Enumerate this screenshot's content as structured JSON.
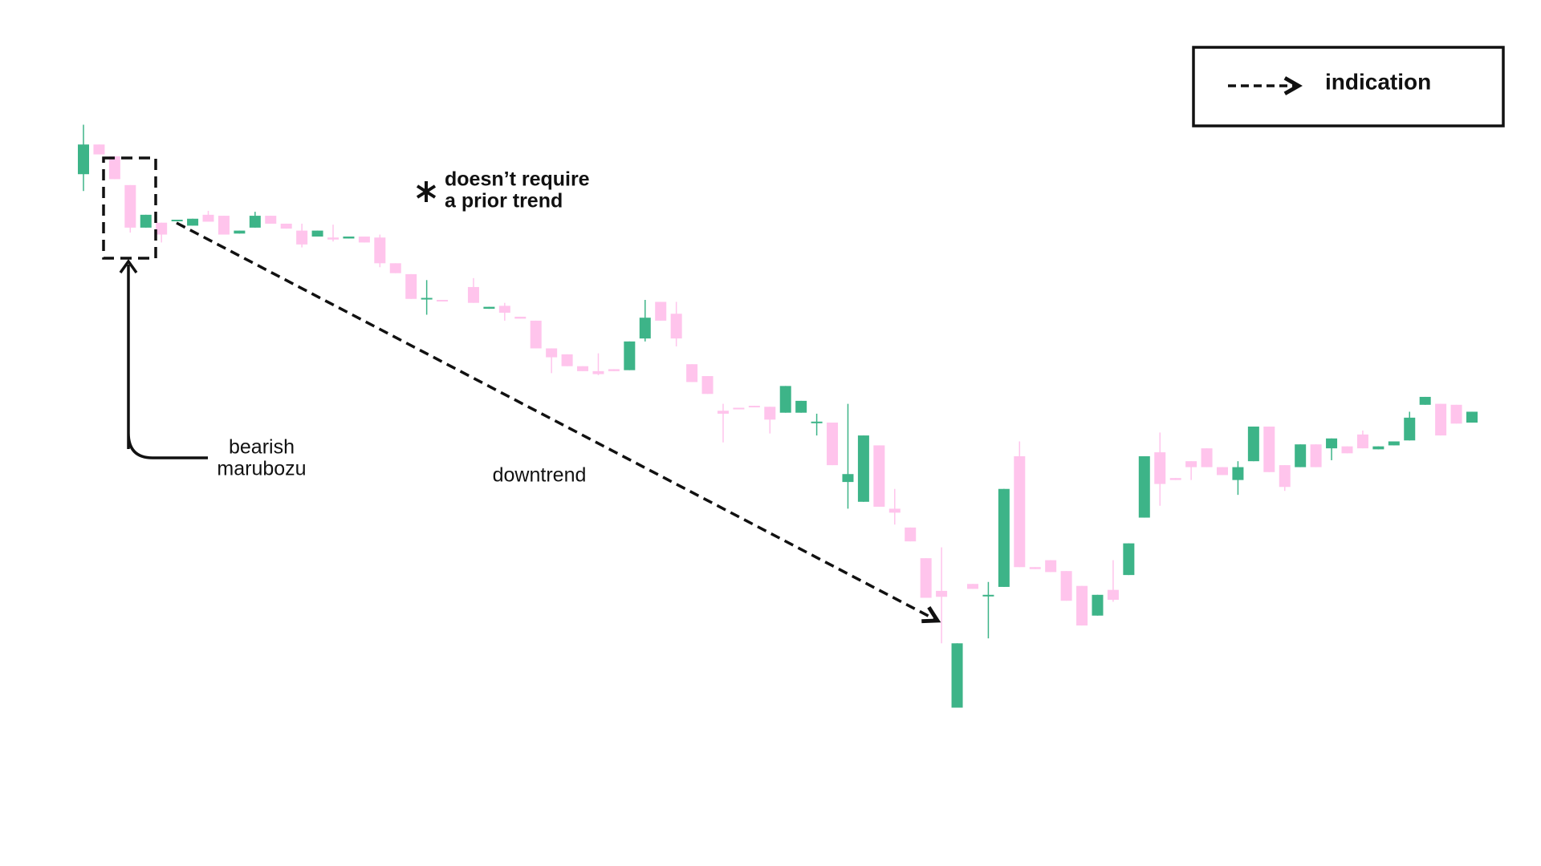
{
  "chart_data": {
    "type": "candlestick",
    "open": [
      699,
      729,
      717,
      688,
      645,
      650,
      652,
      647,
      658,
      657,
      639,
      645,
      657,
      649,
      642,
      636,
      635,
      634,
      636,
      635,
      609,
      598,
      573,
      572,
      null,
      585,
      563,
      566,
      555,
      551,
      523,
      517,
      505,
      500,
      502,
      501,
      533,
      570,
      558,
      507,
      495,
      460,
      463,
      465,
      464,
      458,
      458,
      448,
      448,
      388,
      368,
      425,
      361,
      342,
      311,
      278,
      160,
      285,
      273,
      282,
      414,
      302,
      309,
      298,
      283,
      253,
      279,
      294,
      352,
      418,
      392,
      409,
      422,
      403,
      390,
      409,
      444,
      405,
      403,
      426,
      422,
      424,
      436,
      421,
      425,
      430,
      466,
      467,
      466,
      448
    ],
    "high": [
      749,
      729,
      717,
      688,
      658,
      650,
      653,
      654,
      662,
      657,
      642,
      661,
      657,
      649,
      649,
      642,
      648,
      636,
      636,
      638,
      609,
      598,
      592,
      572,
      null,
      594,
      565,
      569,
      555,
      551,
      523,
      517,
      505,
      518,
      502,
      530,
      572,
      570,
      570,
      507,
      495,
      467,
      463,
      465,
      464,
      485,
      470,
      457,
      448,
      467,
      435,
      425,
      381,
      342,
      311,
      322,
      225,
      285,
      287,
      381,
      429,
      302,
      309,
      298,
      283,
      274,
      309,
      326,
      414,
      438,
      392,
      409,
      422,
      403,
      409,
      444,
      444,
      405,
      426,
      426,
      432,
      424,
      440,
      424,
      429,
      459,
      474,
      467,
      466,
      459
    ],
    "low": [
      682,
      719,
      694,
      640,
      645,
      630,
      652,
      647,
      651,
      638,
      639,
      645,
      649,
      644,
      625,
      636,
      631,
      634,
      630,
      605,
      599,
      573,
      557,
      571,
      null,
      569,
      563,
      551,
      553,
      523,
      498,
      505,
      500,
      496,
      500,
      501,
      530,
      551,
      525,
      489,
      477,
      428,
      462,
      464,
      437,
      458,
      458,
      435,
      405,
      361,
      368,
      363,
      345,
      328,
      271,
      225,
      160,
      280,
      230,
      282,
      302,
      300,
      297,
      268,
      243,
      253,
      267,
      294,
      352,
      364,
      390,
      390,
      403,
      395,
      375,
      409,
      398,
      379,
      403,
      403,
      410,
      417,
      422,
      421,
      425,
      430,
      466,
      435,
      447,
      448
    ],
    "close": [
      729,
      719,
      694,
      645,
      658,
      638,
      653,
      654,
      651,
      638,
      642,
      657,
      649,
      644,
      628,
      642,
      633,
      636,
      630,
      609,
      599,
      573,
      574,
      571,
      null,
      569,
      565,
      559,
      553,
      523,
      514,
      505,
      500,
      497,
      500,
      530,
      554,
      551,
      533,
      489,
      477,
      457,
      462,
      464,
      451,
      485,
      470,
      449,
      405,
      396,
      435,
      363,
      357,
      328,
      271,
      272,
      225,
      280,
      274,
      381,
      302,
      300,
      297,
      268,
      243,
      274,
      269,
      326,
      414,
      386,
      390,
      403,
      403,
      395,
      403,
      444,
      398,
      383,
      426,
      403,
      432,
      417,
      422,
      424,
      429,
      453,
      474,
      435,
      447,
      459
    ],
    "up_color": "#3db488",
    "down_color": "#ffc4ec",
    "ylim": [
      0,
      875
    ],
    "annotations": {
      "pattern": [
        "bearish",
        "marubozu"
      ],
      "trend": "downtrend",
      "note": [
        "doesn’t require",
        "a prior trend"
      ]
    },
    "legend": {
      "label": "indication"
    }
  }
}
